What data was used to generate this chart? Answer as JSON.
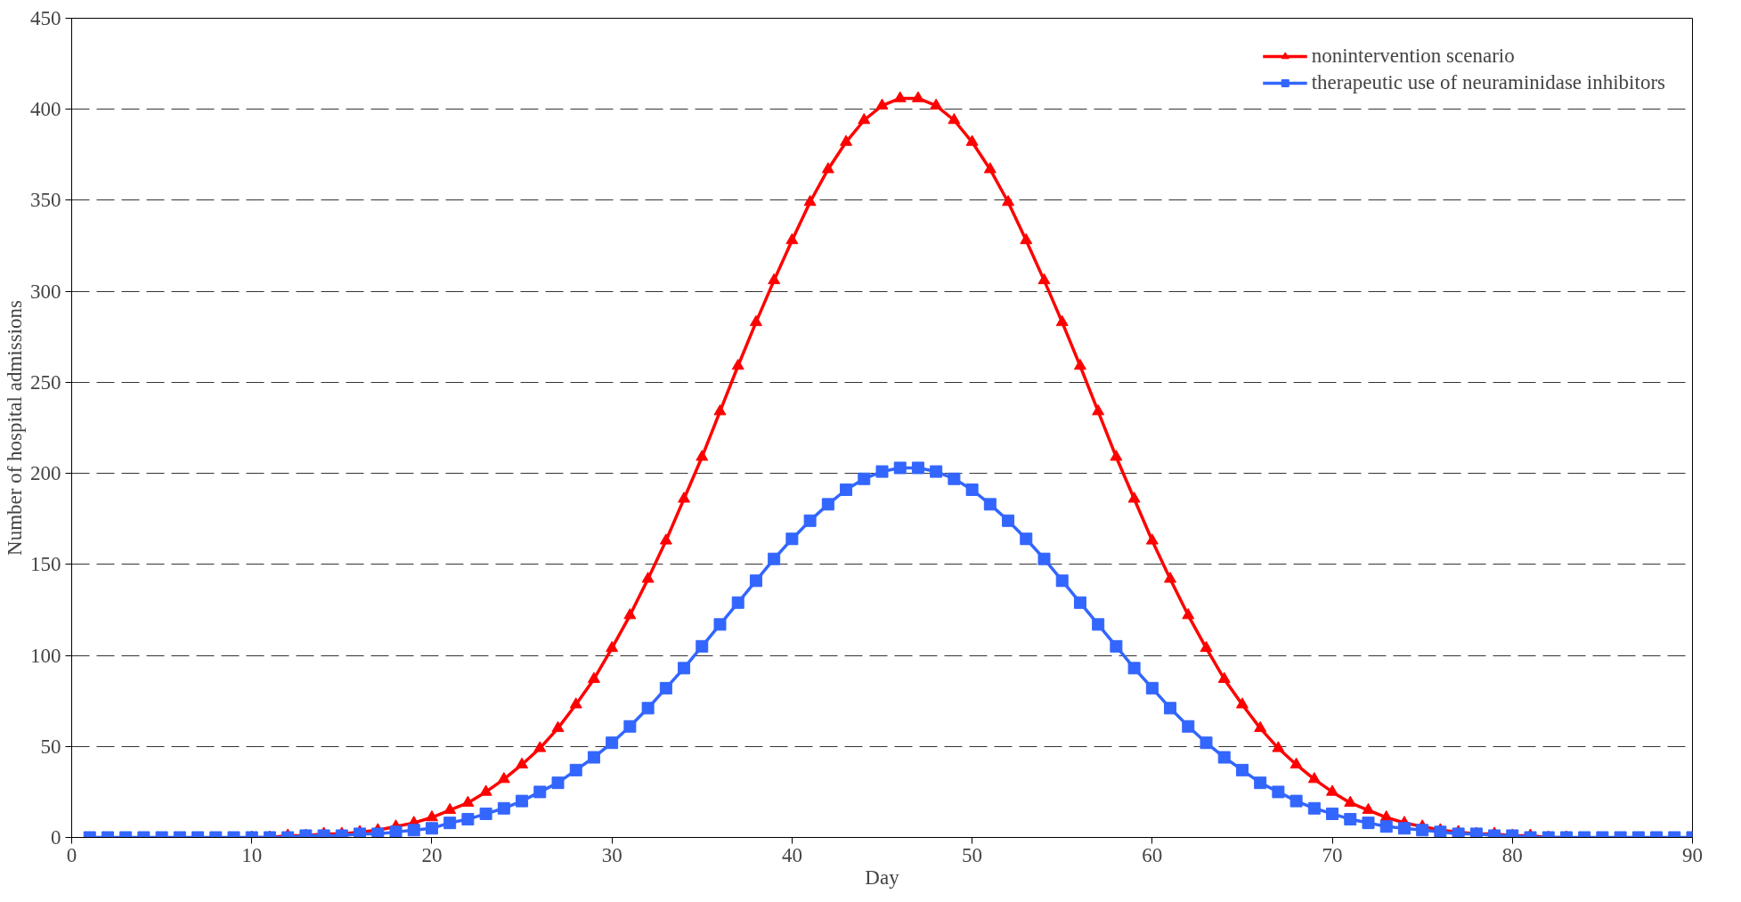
{
  "chart_data": {
    "type": "line",
    "xlabel": "Day",
    "ylabel": "Number of hospital admissions",
    "x": [
      1,
      2,
      3,
      4,
      5,
      6,
      7,
      8,
      9,
      10,
      11,
      12,
      13,
      14,
      15,
      16,
      17,
      18,
      19,
      20,
      21,
      22,
      23,
      24,
      25,
      26,
      27,
      28,
      29,
      30,
      31,
      32,
      33,
      34,
      35,
      36,
      37,
      38,
      39,
      40,
      41,
      42,
      43,
      44,
      45,
      46,
      47,
      48,
      49,
      50,
      51,
      52,
      53,
      54,
      55,
      56,
      57,
      58,
      59,
      60,
      61,
      62,
      63,
      64,
      65,
      66,
      67,
      68,
      69,
      70,
      71,
      72,
      73,
      74,
      75,
      76,
      77,
      78,
      79,
      80,
      81,
      82,
      83,
      84,
      85,
      86,
      87,
      88,
      89,
      90
    ],
    "series": [
      {
        "name": "nonintervention scenario",
        "color": "#ff0000",
        "marker": "triangle",
        "values": [
          null,
          null,
          null,
          null,
          null,
          null,
          null,
          null,
          null,
          0,
          0,
          1,
          1,
          2,
          2,
          3,
          4,
          6,
          8,
          11,
          15,
          19,
          25,
          32,
          40,
          49,
          60,
          73,
          87,
          104,
          122,
          142,
          163,
          186,
          209,
          234,
          259,
          283,
          306,
          328,
          349,
          367,
          382,
          394,
          402,
          406,
          406,
          402,
          394,
          382,
          367,
          349,
          328,
          306,
          283,
          259,
          234,
          209,
          186,
          163,
          142,
          122,
          104,
          87,
          73,
          60,
          49,
          40,
          32,
          25,
          19,
          15,
          11,
          8,
          6,
          4,
          3,
          2,
          2,
          1,
          1,
          0,
          0,
          null,
          null,
          null,
          null,
          null,
          null,
          null
        ]
      },
      {
        "name": "therapeutic use of neuraminidase inhibitors",
        "color": "#3366ff",
        "marker": "square",
        "values": [
          0,
          0,
          0,
          0,
          0,
          0,
          0,
          0,
          0,
          0,
          0,
          0,
          1,
          1,
          1,
          2,
          2,
          3,
          4,
          5,
          8,
          10,
          13,
          16,
          20,
          25,
          30,
          37,
          44,
          52,
          61,
          71,
          82,
          93,
          105,
          117,
          129,
          141,
          153,
          164,
          174,
          183,
          191,
          197,
          201,
          203,
          203,
          201,
          197,
          191,
          183,
          174,
          164,
          153,
          141,
          129,
          117,
          105,
          93,
          82,
          71,
          61,
          52,
          44,
          37,
          30,
          25,
          20,
          16,
          13,
          10,
          8,
          6,
          5,
          4,
          3,
          2,
          2,
          1,
          1,
          0,
          0,
          0,
          0,
          0,
          0,
          0,
          0,
          0,
          0
        ]
      }
    ],
    "xlim": [
      0,
      90
    ],
    "xticks": [
      0,
      10,
      20,
      30,
      40,
      50,
      60,
      70,
      80,
      90
    ],
    "ylim": [
      0,
      450
    ],
    "yticks": [
      0,
      50,
      100,
      150,
      200,
      250,
      300,
      350,
      400,
      450
    ],
    "grid": "y",
    "legend": "top right",
    "line_style": "solid"
  }
}
